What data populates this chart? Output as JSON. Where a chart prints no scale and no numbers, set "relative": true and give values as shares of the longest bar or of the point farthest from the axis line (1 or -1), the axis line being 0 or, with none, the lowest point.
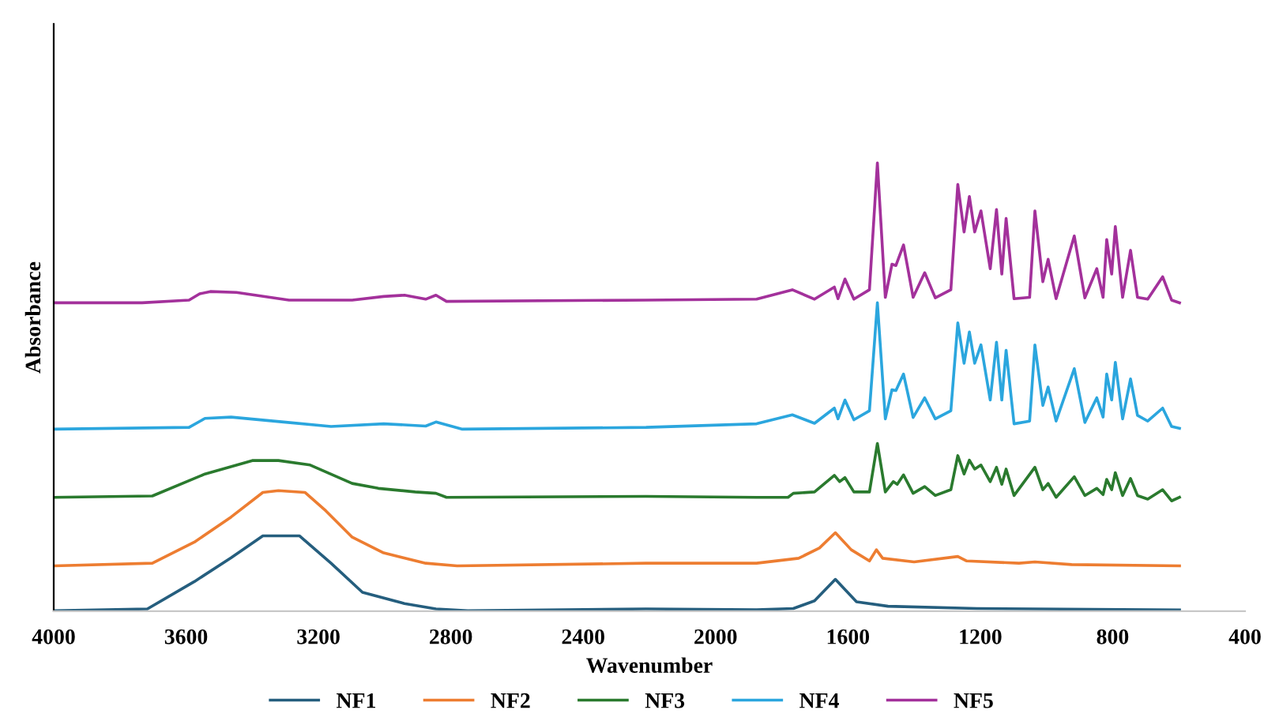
{
  "chart_data": {
    "type": "line",
    "relative": true,
    "xlabel": "Wavenumber",
    "ylabel": "Absorbance",
    "xlim": [
      4000,
      400
    ],
    "xticks": [
      4000,
      3600,
      3200,
      2800,
      2400,
      2000,
      1600,
      1200,
      800,
      400
    ],
    "legend": "bottom",
    "grid": false,
    "marker": "none",
    "line_style": "solid",
    "series": [
      {
        "name": "NF1",
        "color": "#255e7e",
        "x": [
          4000,
          3717,
          3575,
          3464,
          3368,
          3257,
          3162,
          3067,
          2940,
          2845,
          2749,
          2210,
          1876,
          1765,
          1701,
          1638,
          1574,
          1479,
          1210,
          598
        ],
        "values": [
          0.001,
          0.005,
          0.066,
          0.119,
          0.168,
          0.168,
          0.107,
          0.042,
          0.017,
          0.005,
          0.001,
          0.005,
          0.003,
          0.006,
          0.023,
          0.071,
          0.021,
          0.011,
          0.006,
          0.003
        ]
      },
      {
        "name": "NF2",
        "color": "#ed7d31",
        "x": [
          4000,
          3702,
          3575,
          3464,
          3368,
          3321,
          3241,
          3178,
          3098,
          3003,
          2876,
          2781,
          2210,
          1876,
          1749,
          1686,
          1638,
          1590,
          1535,
          1514,
          1495,
          1400,
          1268,
          1241,
          1083,
          1035,
          924,
          598
        ],
        "values": [
          0.101,
          0.107,
          0.154,
          0.21,
          0.265,
          0.269,
          0.265,
          0.224,
          0.165,
          0.13,
          0.107,
          0.101,
          0.107,
          0.107,
          0.118,
          0.141,
          0.175,
          0.137,
          0.112,
          0.137,
          0.118,
          0.11,
          0.122,
          0.112,
          0.107,
          0.11,
          0.104,
          0.101
        ]
      },
      {
        "name": "NF3",
        "color": "#2a7a2e",
        "x": [
          4000,
          3702,
          3543,
          3400,
          3321,
          3225,
          3098,
          3019,
          2908,
          2845,
          2813,
          2210,
          1876,
          1781,
          1765,
          1701,
          1641,
          1625,
          1609,
          1582,
          1535,
          1511,
          1487,
          1463,
          1451,
          1432,
          1403,
          1368,
          1336,
          1289,
          1268,
          1249,
          1233,
          1217,
          1198,
          1170,
          1151,
          1135,
          1122,
          1098,
          1035,
          1011,
          995,
          971,
          916,
          884,
          848,
          829,
          818,
          803,
          792,
          770,
          746,
          725,
          694,
          649,
          622,
          598
        ],
        "values": [
          0.254,
          0.257,
          0.306,
          0.336,
          0.336,
          0.326,
          0.285,
          0.274,
          0.266,
          0.263,
          0.254,
          0.256,
          0.254,
          0.254,
          0.263,
          0.266,
          0.303,
          0.289,
          0.298,
          0.266,
          0.266,
          0.374,
          0.266,
          0.289,
          0.283,
          0.304,
          0.263,
          0.278,
          0.258,
          0.271,
          0.347,
          0.306,
          0.337,
          0.317,
          0.326,
          0.289,
          0.321,
          0.283,
          0.317,
          0.258,
          0.321,
          0.271,
          0.285,
          0.254,
          0.3,
          0.258,
          0.274,
          0.26,
          0.294,
          0.271,
          0.309,
          0.258,
          0.296,
          0.258,
          0.25,
          0.271,
          0.246,
          0.254
        ]
      },
      {
        "name": "NF4",
        "color": "#2ba6de",
        "x": [
          4000,
          3591,
          3543,
          3464,
          3305,
          3162,
          3003,
          2876,
          2845,
          2765,
          2210,
          1876,
          1768,
          1701,
          1641,
          1630,
          1609,
          1582,
          1535,
          1511,
          1487,
          1467,
          1455,
          1432,
          1403,
          1368,
          1336,
          1289,
          1268,
          1249,
          1233,
          1217,
          1198,
          1170,
          1151,
          1135,
          1122,
          1098,
          1051,
          1035,
          1011,
          995,
          971,
          916,
          884,
          848,
          829,
          818,
          803,
          792,
          770,
          746,
          725,
          694,
          649,
          622,
          598
        ],
        "values": [
          0.406,
          0.41,
          0.43,
          0.433,
          0.422,
          0.412,
          0.418,
          0.413,
          0.422,
          0.406,
          0.41,
          0.418,
          0.438,
          0.419,
          0.453,
          0.429,
          0.471,
          0.427,
          0.447,
          0.688,
          0.429,
          0.494,
          0.492,
          0.529,
          0.432,
          0.476,
          0.429,
          0.447,
          0.643,
          0.553,
          0.623,
          0.553,
          0.594,
          0.471,
          0.6,
          0.471,
          0.582,
          0.418,
          0.424,
          0.594,
          0.459,
          0.5,
          0.424,
          0.541,
          0.421,
          0.476,
          0.433,
          0.529,
          0.471,
          0.555,
          0.429,
          0.518,
          0.437,
          0.424,
          0.453,
          0.412,
          0.408
        ]
      },
      {
        "name": "NF5",
        "color": "#a3319b",
        "x": [
          4000,
          3733,
          3591,
          3559,
          3527,
          3448,
          3289,
          3098,
          3003,
          2940,
          2876,
          2845,
          2813,
          2210,
          1876,
          1768,
          1701,
          1641,
          1630,
          1609,
          1582,
          1535,
          1511,
          1487,
          1467,
          1455,
          1432,
          1403,
          1368,
          1336,
          1289,
          1268,
          1249,
          1233,
          1217,
          1198,
          1170,
          1151,
          1135,
          1122,
          1098,
          1051,
          1035,
          1011,
          995,
          971,
          916,
          884,
          848,
          829,
          818,
          803,
          792,
          770,
          746,
          725,
          694,
          649,
          622,
          598
        ],
        "values": [
          0.688,
          0.688,
          0.694,
          0.708,
          0.713,
          0.711,
          0.694,
          0.694,
          0.702,
          0.705,
          0.696,
          0.705,
          0.691,
          0.694,
          0.696,
          0.717,
          0.696,
          0.723,
          0.697,
          0.741,
          0.696,
          0.717,
          1,
          0.7,
          0.774,
          0.771,
          0.817,
          0.7,
          0.755,
          0.699,
          0.717,
          0.952,
          0.846,
          0.925,
          0.846,
          0.893,
          0.764,
          0.896,
          0.752,
          0.876,
          0.697,
          0.7,
          0.893,
          0.735,
          0.785,
          0.697,
          0.837,
          0.699,
          0.764,
          0.7,
          0.829,
          0.752,
          0.858,
          0.7,
          0.805,
          0.7,
          0.696,
          0.746,
          0.694,
          0.688
        ]
      }
    ]
  }
}
